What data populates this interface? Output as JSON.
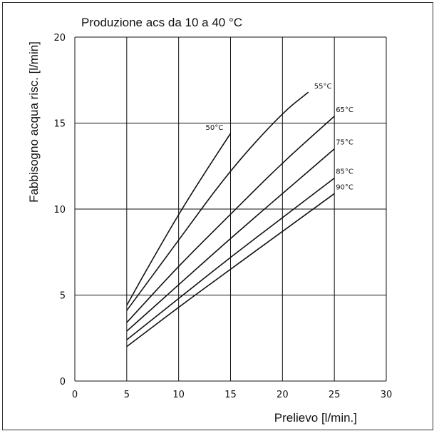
{
  "chart_data": {
    "type": "line",
    "title": "Produzione acs da 10 a 40 °C",
    "xlabel": "Prelievo [l/min.]",
    "ylabel": "Fabbisogno acqua risc. [l/min]",
    "xlim": [
      0,
      30
    ],
    "ylim": [
      0,
      20
    ],
    "xticks": [
      0,
      5,
      10,
      15,
      20,
      25,
      30
    ],
    "yticks": [
      0,
      5,
      10,
      15,
      20
    ],
    "grid": true,
    "series": [
      {
        "name": "50°C",
        "x": [
          5,
          7.5,
          10,
          12.5,
          15
        ],
        "y": [
          4.4,
          7.1,
          9.7,
          12.1,
          14.4
        ]
      },
      {
        "name": "55°C",
        "x": [
          5,
          10,
          15,
          20,
          22.5
        ],
        "y": [
          4.1,
          8.2,
          12.3,
          15.6,
          16.8
        ]
      },
      {
        "name": "65°C",
        "x": [
          5,
          10,
          15,
          20,
          25
        ],
        "y": [
          3.4,
          6.7,
          9.7,
          12.7,
          15.4
        ]
      },
      {
        "name": "75°C",
        "x": [
          5,
          10,
          15,
          20,
          25
        ],
        "y": [
          2.9,
          5.6,
          8.3,
          10.9,
          13.5
        ]
      },
      {
        "name": "85°C",
        "x": [
          5,
          10,
          15,
          20,
          25
        ],
        "y": [
          2.4,
          4.8,
          7.2,
          9.5,
          11.8
        ]
      },
      {
        "name": "90°C",
        "x": [
          5,
          10,
          15,
          20,
          25
        ],
        "y": [
          2.0,
          4.3,
          6.5,
          8.7,
          10.9
        ]
      }
    ]
  }
}
